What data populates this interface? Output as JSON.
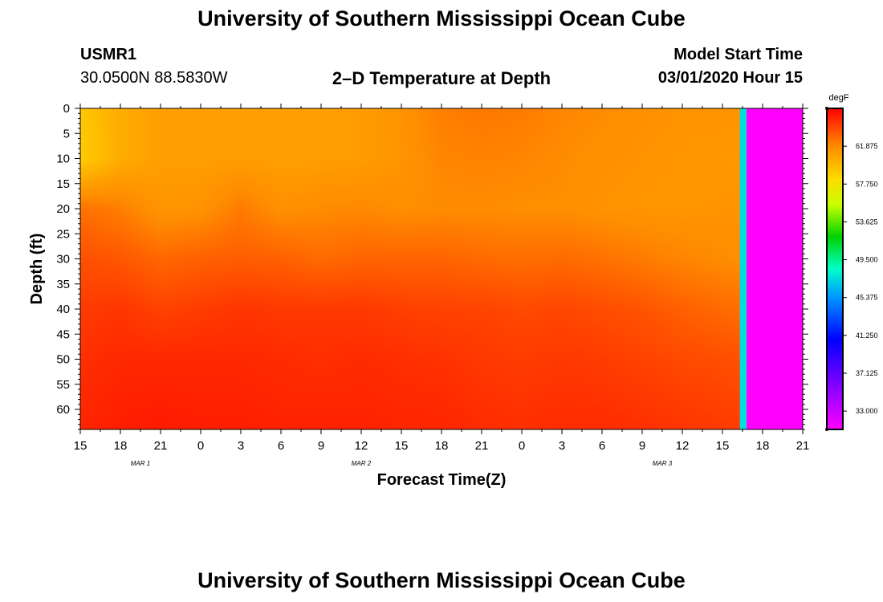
{
  "header": {
    "title": "University of Southern Mississippi Ocean Cube",
    "station": "USMR1",
    "coords": "30.0500N 88.5830W",
    "subtitle": "2–D Temperature at Depth",
    "model_label": "Model Start Time",
    "model_time": "03/01/2020 Hour 15"
  },
  "footer": {
    "title": "University of Southern Mississippi Ocean Cube"
  },
  "chart_data": {
    "type": "heatmap",
    "title": "2–D Temperature at Depth",
    "xlabel": "Forecast Time(Z)",
    "ylabel": "Depth (ft)",
    "x_ticks": [
      "15",
      "18",
      "21",
      "0",
      "3",
      "6",
      "9",
      "12",
      "15",
      "18",
      "21",
      "0",
      "3",
      "6",
      "9",
      "12",
      "15",
      "18",
      "21"
    ],
    "x_hours": [
      0,
      3,
      6,
      9,
      12,
      15,
      18,
      21,
      24,
      27,
      30,
      33,
      36,
      39,
      42,
      45,
      48,
      51,
      54
    ],
    "date_labels": [
      {
        "text": "MAR 1",
        "hour": 4.5
      },
      {
        "text": "MAR 2",
        "hour": 21
      },
      {
        "text": "MAR 3",
        "hour": 43.5
      }
    ],
    "y_ticks": [
      0,
      5,
      10,
      15,
      20,
      25,
      30,
      35,
      40,
      45,
      50,
      55,
      60
    ],
    "ylim": [
      0,
      64
    ],
    "xlim": [
      0,
      54
    ],
    "colorbar": {
      "unit": "degF",
      "labels": [
        "61.875",
        "57.750",
        "53.625",
        "49.500",
        "45.375",
        "41.250",
        "37.125",
        "33.000"
      ],
      "range": [
        31,
        66
      ]
    },
    "data_end_hour": 49.3,
    "missing_band_hours": [
      49.3,
      49.8
    ],
    "missing_band_value": 47.5,
    "no_data_hours": [
      49.8,
      54
    ],
    "field": {
      "hours": [
        0,
        3,
        6,
        9,
        12,
        15,
        18,
        21,
        24,
        27,
        30,
        33,
        36,
        39,
        42,
        45,
        49.3
      ],
      "depths": [
        0,
        10,
        20,
        30,
        40,
        50,
        64
      ],
      "temps": [
        [
          59.2,
          60.4,
          61.0,
          61.0,
          61.0,
          61.0,
          61.0,
          61.1,
          61.5,
          62.2,
          62.4,
          62.3,
          62.0,
          61.8,
          61.6,
          61.5,
          61.5
        ],
        [
          59.0,
          60.4,
          61.0,
          61.0,
          61.0,
          61.0,
          61.0,
          61.1,
          61.4,
          62.0,
          62.1,
          62.0,
          61.8,
          61.6,
          61.5,
          61.4,
          61.3
        ],
        [
          62.6,
          62.2,
          61.4,
          61.5,
          62.3,
          61.6,
          61.8,
          61.9,
          61.7,
          61.8,
          61.8,
          61.7,
          61.7,
          61.5,
          61.4,
          61.4,
          61.5
        ],
        [
          63.6,
          63.4,
          62.9,
          63.1,
          63.2,
          63.1,
          62.8,
          63.0,
          63.0,
          63.0,
          62.8,
          62.7,
          62.8,
          62.6,
          62.3,
          62.0,
          61.7
        ],
        [
          64.2,
          64.4,
          64.0,
          64.2,
          64.4,
          64.3,
          64.3,
          64.3,
          64.1,
          64.0,
          64.0,
          63.8,
          63.9,
          63.7,
          63.5,
          63.1,
          62.7
        ],
        [
          64.6,
          64.8,
          64.8,
          64.8,
          64.8,
          64.7,
          64.6,
          64.7,
          64.6,
          64.5,
          64.3,
          64.2,
          64.3,
          64.2,
          64.0,
          63.8,
          63.6
        ],
        [
          64.9,
          65.1,
          65.2,
          65.1,
          65.1,
          65.0,
          65.0,
          65.0,
          64.9,
          64.9,
          64.7,
          64.6,
          64.7,
          64.7,
          64.6,
          64.4,
          64.2
        ]
      ]
    }
  }
}
